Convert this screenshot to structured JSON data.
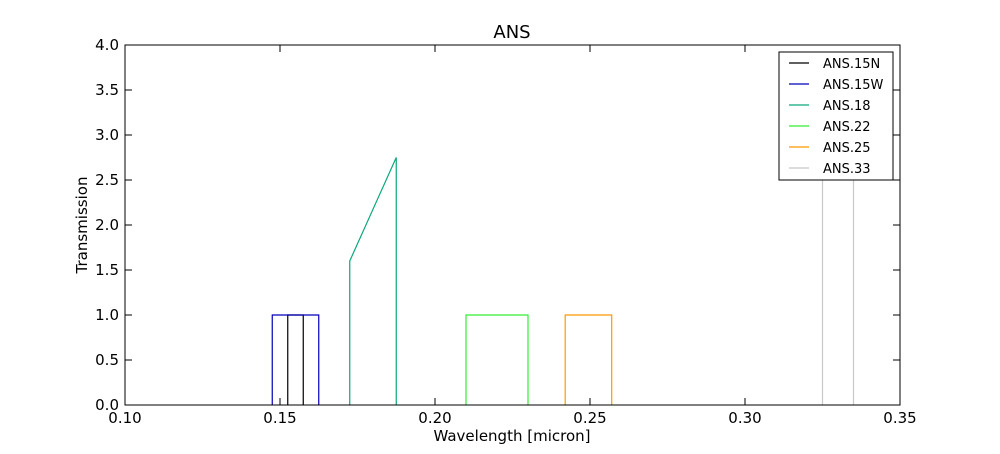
{
  "chart_data": {
    "type": "line",
    "title": "ANS",
    "xlabel": "Wavelength [micron]",
    "ylabel": "Transmission",
    "xlim": [
      0.1,
      0.35
    ],
    "ylim": [
      0.0,
      4.0
    ],
    "xticks": [
      "0.10",
      "0.15",
      "0.20",
      "0.25",
      "0.30",
      "0.35"
    ],
    "yticks": [
      "0.0",
      "0.5",
      "1.0",
      "1.5",
      "2.0",
      "2.5",
      "3.0",
      "3.5",
      "4.0"
    ],
    "grid": false,
    "legend_position": "top-right",
    "series": [
      {
        "name": "ANS.15N",
        "color": "#000000",
        "points": [
          [
            0.1525,
            0.0
          ],
          [
            0.1525,
            1.0
          ],
          [
            0.1575,
            1.0
          ],
          [
            0.1575,
            0.0
          ]
        ]
      },
      {
        "name": "ANS.15W",
        "color": "#0000bb",
        "points": [
          [
            0.1475,
            0.0
          ],
          [
            0.1475,
            1.0
          ],
          [
            0.1625,
            1.0
          ],
          [
            0.1625,
            0.0
          ]
        ]
      },
      {
        "name": "ANS.18",
        "color": "#0aa87a",
        "points": [
          [
            0.1725,
            0.0
          ],
          [
            0.1725,
            1.6
          ],
          [
            0.1875,
            2.75
          ],
          [
            0.1875,
            0.0
          ]
        ]
      },
      {
        "name": "ANS.22",
        "color": "#33ee33",
        "points": [
          [
            0.21,
            0.0
          ],
          [
            0.21,
            1.0
          ],
          [
            0.23,
            1.0
          ],
          [
            0.23,
            0.0
          ]
        ]
      },
      {
        "name": "ANS.25",
        "color": "#ff9900",
        "points": [
          [
            0.242,
            0.0
          ],
          [
            0.242,
            1.0
          ],
          [
            0.257,
            1.0
          ],
          [
            0.257,
            0.0
          ]
        ]
      },
      {
        "name": "ANS.33",
        "color": "#c8c8c8",
        "points": [
          [
            0.325,
            0.0
          ],
          [
            0.325,
            3.5
          ],
          [
            0.335,
            3.5
          ],
          [
            0.335,
            0.0
          ]
        ]
      }
    ]
  }
}
